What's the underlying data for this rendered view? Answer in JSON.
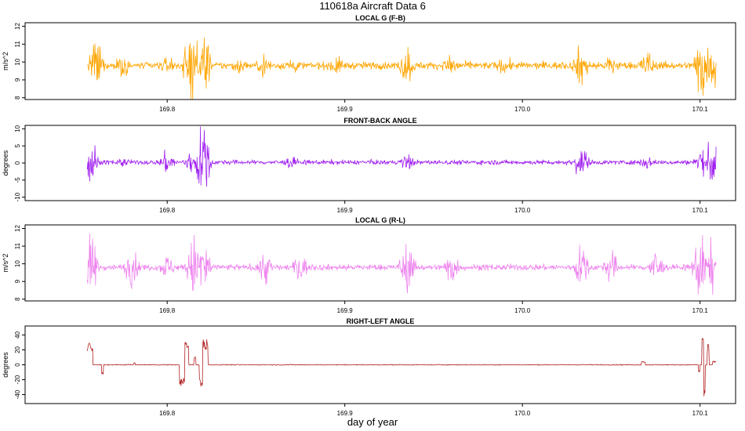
{
  "title": "110618a   Aircraft Data 6",
  "xlabel": "day of year",
  "chart_data": [
    {
      "type": "line",
      "title": "LOCAL G (F-B)",
      "ylabel": "m/s^2",
      "color": "#FFA500",
      "xlim": [
        169.72,
        170.12
      ],
      "ylim": [
        7.9,
        12.2
      ],
      "yticks": [
        8,
        9,
        10,
        11,
        12
      ],
      "xticks": [
        "169.8",
        "169.9",
        "170.0",
        "170.1"
      ],
      "series": [
        {
          "x_range": [
            169.755,
            170.109
          ],
          "baseline": 9.8,
          "noise": 0.18,
          "bursts": [
            {
              "x": 169.76,
              "amp": 1.4
            },
            {
              "x": 169.775,
              "amp": 0.7
            },
            {
              "x": 169.8,
              "amp": 0.5
            },
            {
              "x": 169.813,
              "amp": 1.9
            },
            {
              "x": 169.82,
              "amp": 2.0
            },
            {
              "x": 169.84,
              "amp": 0.5
            },
            {
              "x": 169.855,
              "amp": 0.7
            },
            {
              "x": 169.87,
              "amp": 0.6
            },
            {
              "x": 169.895,
              "amp": 0.6
            },
            {
              "x": 169.935,
              "amp": 1.1
            },
            {
              "x": 169.96,
              "amp": 0.8
            },
            {
              "x": 169.99,
              "amp": 0.6
            },
            {
              "x": 170.033,
              "amp": 1.2
            },
            {
              "x": 170.05,
              "amp": 0.7
            },
            {
              "x": 170.07,
              "amp": 0.9
            },
            {
              "x": 170.101,
              "amp": 2.0
            },
            {
              "x": 170.107,
              "amp": 1.3
            }
          ]
        }
      ]
    },
    {
      "type": "line",
      "title": "FRONT-BACK ANGLE",
      "ylabel": "degrees",
      "color": "#A020F0",
      "xlim": [
        169.72,
        170.12
      ],
      "ylim": [
        -11,
        11
      ],
      "yticks": [
        -10,
        -5,
        0,
        5,
        10
      ],
      "xticks": [
        "169.8",
        "169.9",
        "170.0",
        "170.1"
      ],
      "series": [
        {
          "x_range": [
            169.755,
            170.109
          ],
          "baseline": 0.2,
          "noise": 0.6,
          "bursts": [
            {
              "x": 169.756,
              "amp": 10
            },
            {
              "x": 169.775,
              "amp": 1.5
            },
            {
              "x": 169.8,
              "amp": 3.5
            },
            {
              "x": 169.813,
              "amp": 3.5
            },
            {
              "x": 169.82,
              "amp": 11
            },
            {
              "x": 169.87,
              "amp": 2.0
            },
            {
              "x": 169.935,
              "amp": 2.5
            },
            {
              "x": 170.033,
              "amp": 5
            },
            {
              "x": 170.07,
              "amp": 2.0
            },
            {
              "x": 170.1,
              "amp": 4
            },
            {
              "x": 170.108,
              "amp": 10
            }
          ]
        }
      ]
    },
    {
      "type": "line",
      "title": "LOCAL G (R-L)",
      "ylabel": "m/s^2",
      "color": "#EE82EE",
      "xlim": [
        169.72,
        170.12
      ],
      "ylim": [
        7.9,
        12.2
      ],
      "yticks": [
        8,
        9,
        10,
        11,
        12
      ],
      "xticks": [
        "169.8",
        "169.9",
        "170.0",
        "170.1"
      ],
      "series": [
        {
          "x_range": [
            169.755,
            170.109
          ],
          "baseline": 9.8,
          "noise": 0.15,
          "bursts": [
            {
              "x": 169.757,
              "amp": 1.7
            },
            {
              "x": 169.78,
              "amp": 1.0
            },
            {
              "x": 169.8,
              "amp": 0.7
            },
            {
              "x": 169.815,
              "amp": 1.7
            },
            {
              "x": 169.82,
              "amp": 1.9
            },
            {
              "x": 169.855,
              "amp": 1.0
            },
            {
              "x": 169.875,
              "amp": 0.8
            },
            {
              "x": 169.935,
              "amp": 1.3
            },
            {
              "x": 169.96,
              "amp": 0.9
            },
            {
              "x": 170.033,
              "amp": 1.2
            },
            {
              "x": 170.05,
              "amp": 0.9
            },
            {
              "x": 170.075,
              "amp": 1.0
            },
            {
              "x": 170.1,
              "amp": 1.9
            },
            {
              "x": 170.107,
              "amp": 1.4
            }
          ]
        }
      ]
    },
    {
      "type": "line",
      "title": "RIGHT-LEFT ANGLE",
      "ylabel": "degrees",
      "color": "#B22222",
      "xlim": [
        169.72,
        170.12
      ],
      "ylim": [
        -52,
        52
      ],
      "yticks": [
        -40,
        -20,
        0,
        20,
        40
      ],
      "xticks": [
        "169.8",
        "169.9",
        "170.0",
        "170.1"
      ],
      "series": [
        {
          "x_range": [
            169.755,
            170.109
          ],
          "baseline": 0.0,
          "noise": 0.6,
          "events": [
            {
              "x0": 169.755,
              "x1": 169.758,
              "value": 30
            },
            {
              "x0": 169.763,
              "x1": 169.764,
              "value": -15
            },
            {
              "x0": 169.781,
              "x1": 169.782,
              "value": 3
            },
            {
              "x0": 169.807,
              "x1": 169.81,
              "value": -28
            },
            {
              "x0": 169.81,
              "x1": 169.812,
              "value": 32
            },
            {
              "x0": 169.815,
              "x1": 169.816,
              "value": 12
            },
            {
              "x0": 169.818,
              "x1": 169.82,
              "value": -30
            },
            {
              "x0": 169.82,
              "x1": 169.823,
              "value": 34
            },
            {
              "x0": 170.067,
              "x1": 170.069,
              "value": 5
            },
            {
              "x0": 170.099,
              "x1": 170.1,
              "value": -12
            },
            {
              "x0": 170.101,
              "x1": 170.102,
              "value": 38
            },
            {
              "x0": 170.102,
              "x1": 170.103,
              "value": -43
            },
            {
              "x0": 170.104,
              "x1": 170.105,
              "value": 30
            },
            {
              "x0": 170.107,
              "x1": 170.109,
              "value": 5
            }
          ]
        }
      ]
    }
  ]
}
